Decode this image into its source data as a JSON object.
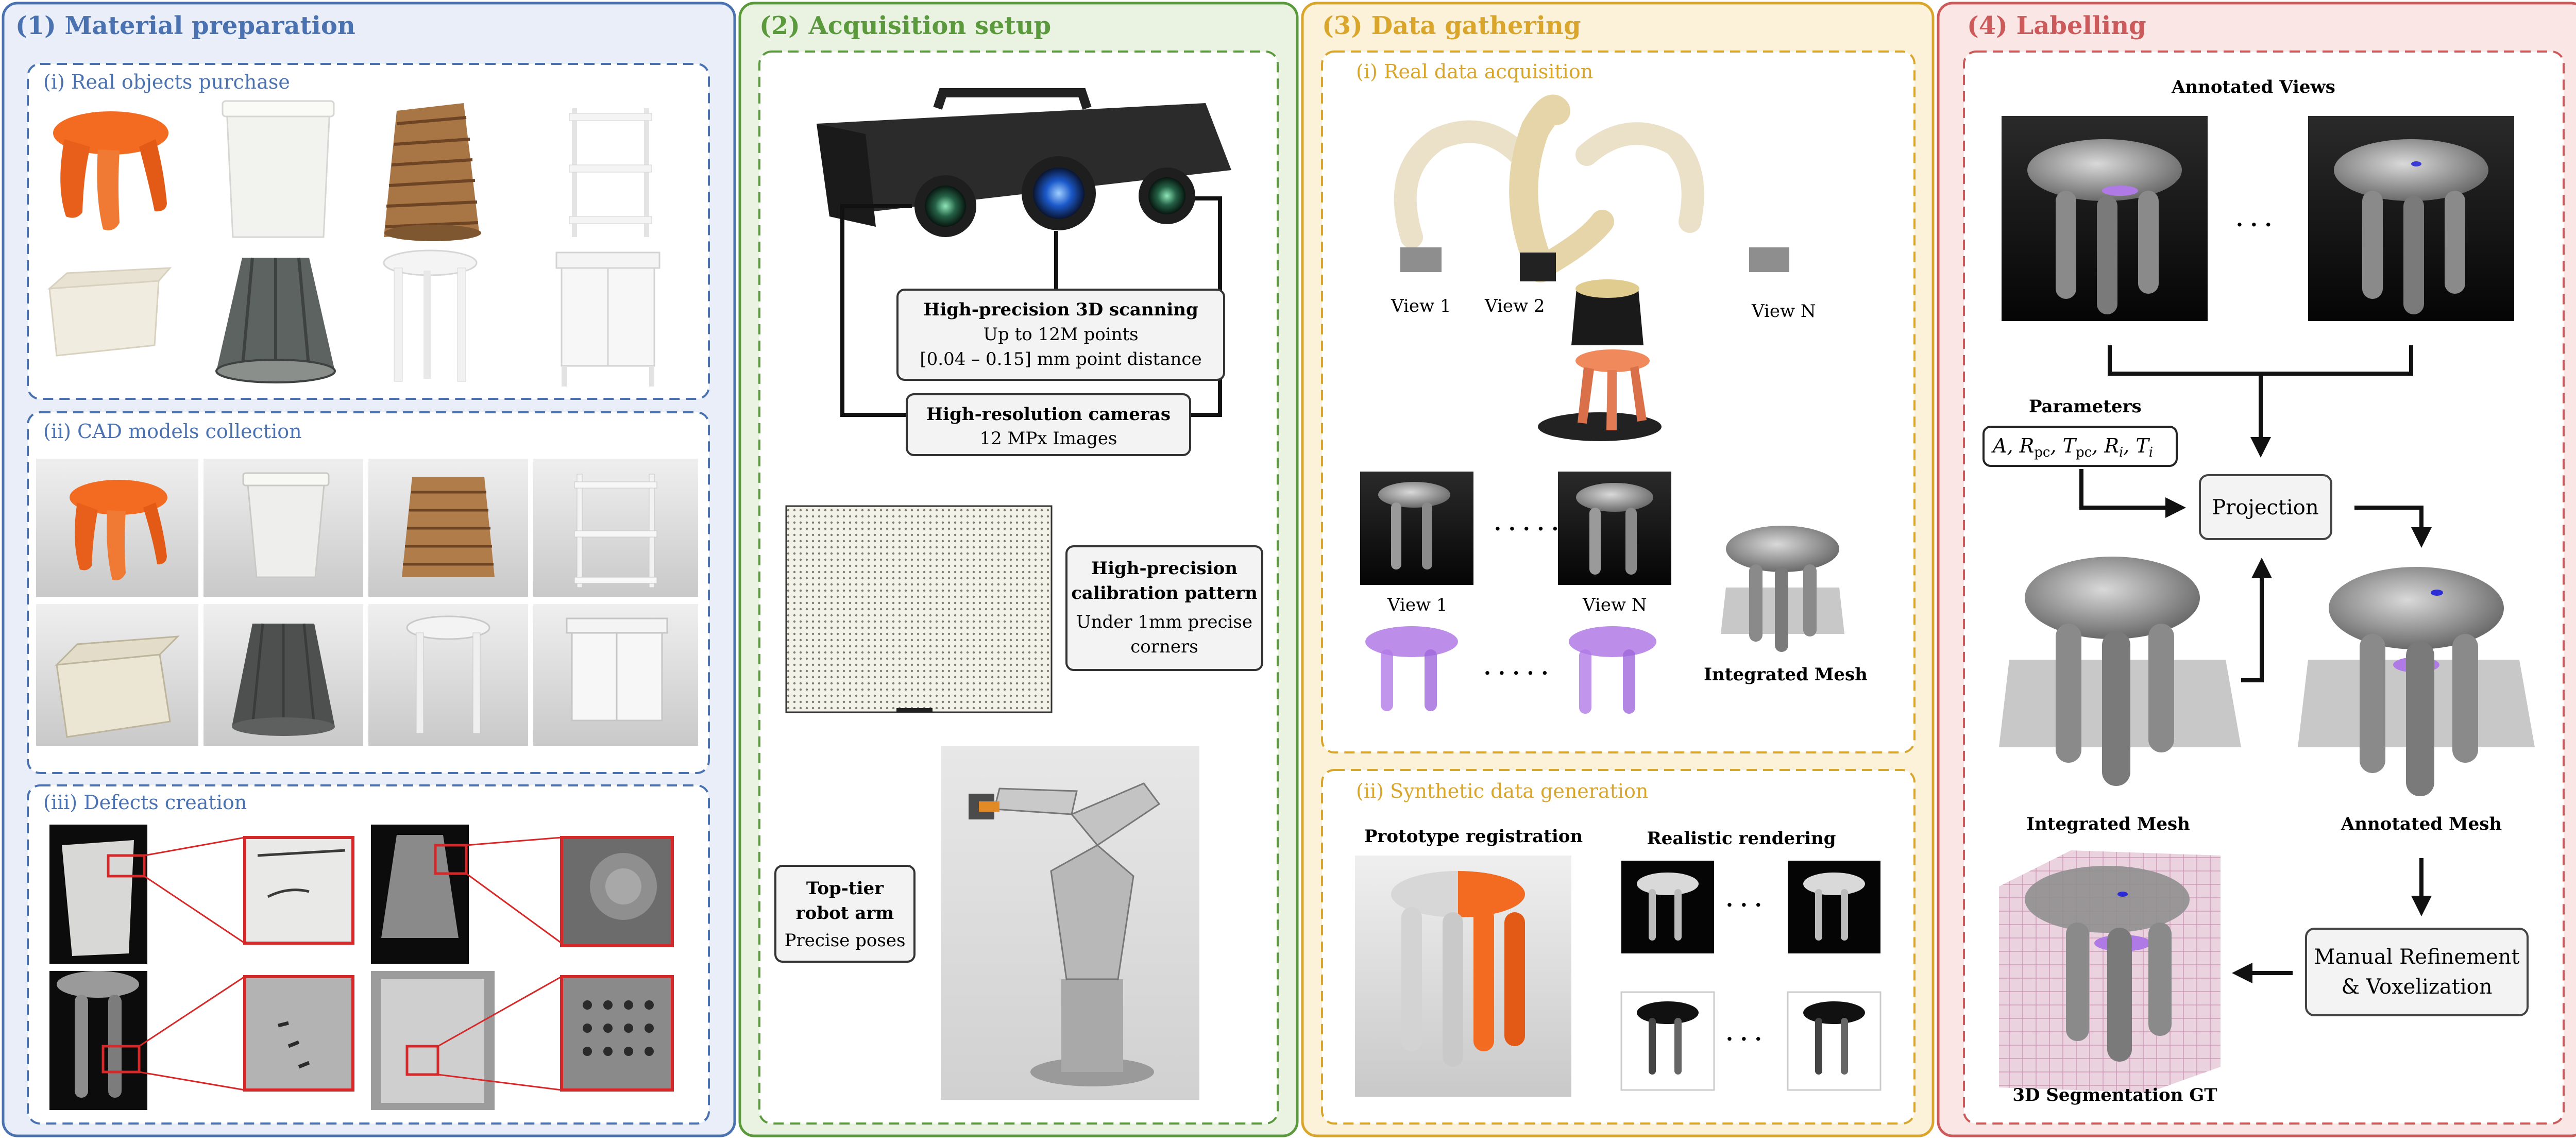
{
  "panels": [
    {
      "title": "(1) Material preparation",
      "color": "#4a72b0",
      "bg": "#e9eef8"
    },
    {
      "title": "(2) Acquisition setup",
      "color": "#5a9a3c",
      "bg": "#eaf3e2"
    },
    {
      "title": "(3) Data gathering",
      "color": "#d9a52a",
      "bg": "#fbf2d9"
    },
    {
      "title": "(4) Labelling",
      "color": "#cc5a5a",
      "bg": "#fbe6e6"
    }
  ],
  "material": {
    "real_objects": "(i) Real objects purchase",
    "cad_models": "(ii) CAD models collection",
    "defects": "(iii) Defects creation"
  },
  "acquisition": {
    "scan_title": "High-precision 3D scanning",
    "scan_line1": "Up to 12M points",
    "scan_line2": "[0.04 – 0.15] mm point distance",
    "cam_title": "High-resolution cameras",
    "cam_line": "12 MPx Images",
    "calib_title1": "High-precision",
    "calib_title2": "calibration pattern",
    "calib_line1": "Under 1mm precise",
    "calib_line2": "corners",
    "robot_title1": "Top-tier",
    "robot_title2": "robot arm",
    "robot_line": "Precise poses"
  },
  "gathering": {
    "real_title": "(i) Real data acquisition",
    "view1": "View 1",
    "view2": "View  2",
    "viewN": "View N",
    "view1b": "View 1",
    "viewNb": "View N",
    "dots1": "· · · · ·",
    "dots2": "· · · · ·",
    "integrated_mesh": "Integrated Mesh",
    "synth_title": "(ii) Synthetic data generation",
    "prototype": "Prototype registration",
    "realistic": "Realistic rendering",
    "dots3": "· · ·",
    "dots4": "· · ·"
  },
  "labelling": {
    "annotated_views": "Annotated Views",
    "dots": "· · ·",
    "parameters": "Parameters",
    "params_formula": "A, R",
    "params_sub": "pc",
    "params_t": ", T",
    "params_sub2": "pc",
    "params_r": ", R",
    "params_sub3": "i",
    "params_ti": ", T",
    "params_sub4": "i",
    "projection": "Projection",
    "integrated_mesh": "Integrated Mesh",
    "annotated_mesh": "Annotated Mesh",
    "manual1": "Manual Refinement",
    "manual2": "& Voxelization",
    "seg_gt": "3D Segmentation GT"
  },
  "colors": {
    "orange": "#f26b21",
    "white_obj": "#eeeeee",
    "wicker": "#a87545",
    "dark_obj": "#5d6360",
    "mesh_gray": "#7b7b7b",
    "purple": "#b07ae6",
    "robot_beige": "#e6d5a8",
    "red": "#d62828"
  }
}
